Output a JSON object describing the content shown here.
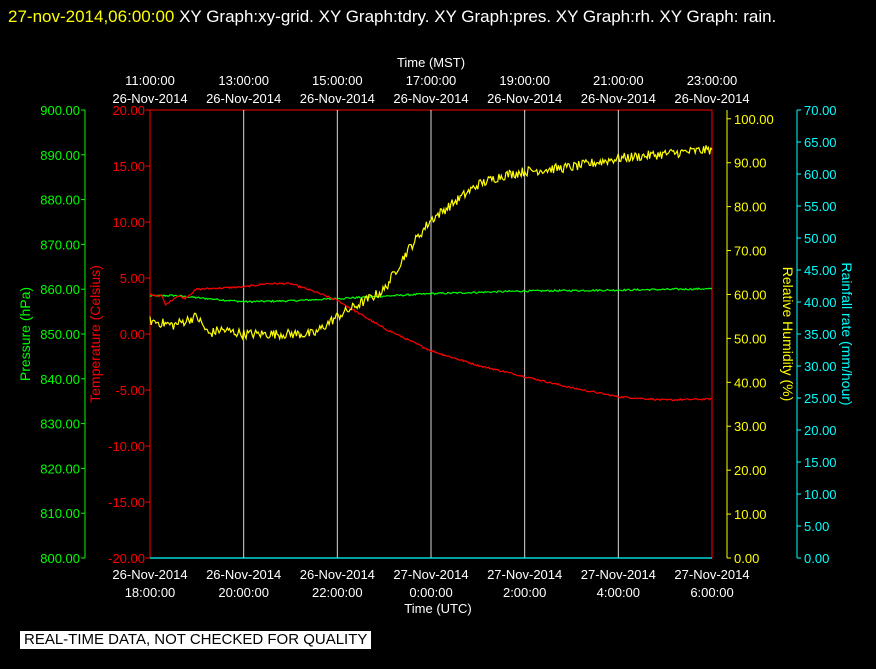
{
  "header": {
    "timestamp": "27-nov-2014,06:00:00",
    "graphs": "XY Graph:xy-grid.  XY Graph:tdry.  XY Graph:pres.  XY Graph:rh.  XY Graph: rain."
  },
  "footer_note": "REAL-TIME DATA, NOT CHECKED FOR QUALITY",
  "colors": {
    "pressure": "#00ff00",
    "temperature": "#ff0000",
    "humidity": "#ffff00",
    "rain": "#00ffff",
    "grid": "#ffffff",
    "background": "#000000"
  },
  "chart_data": {
    "type": "line",
    "grid": true,
    "x_top": {
      "label": "Time (MST)",
      "ticks": [
        {
          "time": "11:00:00",
          "date": "26-Nov-2014"
        },
        {
          "time": "13:00:00",
          "date": "26-Nov-2014"
        },
        {
          "time": "15:00:00",
          "date": "26-Nov-2014"
        },
        {
          "time": "17:00:00",
          "date": "26-Nov-2014"
        },
        {
          "time": "19:00:00",
          "date": "26-Nov-2014"
        },
        {
          "time": "21:00:00",
          "date": "26-Nov-2014"
        },
        {
          "time": "23:00:00",
          "date": "26-Nov-2014"
        }
      ]
    },
    "x_bottom": {
      "label": "Time (UTC)",
      "range": [
        "2014-11-26 18:00:00",
        "2014-11-27 06:00:00"
      ],
      "ticks": [
        {
          "date": "26-Nov-2014",
          "time": "18:00:00"
        },
        {
          "date": "26-Nov-2014",
          "time": "20:00:00"
        },
        {
          "date": "26-Nov-2014",
          "time": "22:00:00"
        },
        {
          "date": "27-Nov-2014",
          "time": "0:00:00"
        },
        {
          "date": "27-Nov-2014",
          "time": "2:00:00"
        },
        {
          "date": "27-Nov-2014",
          "time": "4:00:00"
        },
        {
          "date": "27-Nov-2014",
          "time": "6:00:00"
        }
      ]
    },
    "axes": [
      {
        "id": "pressure",
        "label": "Pressure (hPa)",
        "range": [
          800,
          900
        ],
        "ticks": [
          "800.00",
          "810.00",
          "820.00",
          "830.00",
          "840.00",
          "850.00",
          "860.00",
          "870.00",
          "880.00",
          "890.00",
          "900.00"
        ]
      },
      {
        "id": "temperature",
        "label": "Temperature (Celsius)",
        "range": [
          -20,
          20
        ],
        "ticks": [
          "-20.00",
          "-15.00",
          "-10.00",
          "-5.00",
          "0.00",
          "5.00",
          "10.00",
          "15.00",
          "20.00"
        ]
      },
      {
        "id": "humidity",
        "label": "Relative Humidity (%)",
        "range": [
          0,
          102
        ],
        "ticks": [
          "0.00",
          "10.00",
          "20.00",
          "30.00",
          "40.00",
          "50.00",
          "60.00",
          "70.00",
          "80.00",
          "90.00",
          "100.00"
        ]
      },
      {
        "id": "rain",
        "label": "Rainfall rate (mm/hour)",
        "range": [
          0,
          70
        ],
        "ticks": [
          "0.00",
          "5.00",
          "10.00",
          "15.00",
          "20.00",
          "25.00",
          "30.00",
          "35.00",
          "40.00",
          "45.00",
          "50.00",
          "55.00",
          "60.00",
          "65.00",
          "70.00"
        ]
      }
    ],
    "series": [
      {
        "axis": "pressure",
        "noise": 0.2,
        "x": [
          "2014-11-26 18:00",
          "2014-11-26 18:30",
          "2014-11-26 19:00",
          "2014-11-26 20:00",
          "2014-11-26 21:00",
          "2014-11-26 22:00",
          "2014-11-27 00:00",
          "2014-11-27 02:00",
          "2014-11-27 04:00",
          "2014-11-27 06:00"
        ],
        "y": [
          858.5,
          858.6,
          858.1,
          857.2,
          857.4,
          857.9,
          859.0,
          859.6,
          859.8,
          860.1
        ]
      },
      {
        "axis": "temperature",
        "noise": 0.08,
        "x": [
          "2014-11-26 18:00",
          "2014-11-26 18:15",
          "2014-11-26 18:20",
          "2014-11-26 18:35",
          "2014-11-26 18:45",
          "2014-11-26 19:00",
          "2014-11-26 20:00",
          "2014-11-26 20:30",
          "2014-11-26 21:00",
          "2014-11-26 21:30",
          "2014-11-26 22:00",
          "2014-11-26 23:00",
          "2014-11-27 00:00",
          "2014-11-27 01:00",
          "2014-11-27 02:00",
          "2014-11-27 03:00",
          "2014-11-27 04:00",
          "2014-11-27 05:00",
          "2014-11-27 06:00"
        ],
        "y": [
          3.5,
          3.4,
          2.6,
          3.4,
          3.2,
          4.0,
          4.2,
          4.5,
          4.5,
          3.8,
          3.0,
          0.5,
          -1.5,
          -2.8,
          -3.8,
          -4.8,
          -5.6,
          -5.9,
          -5.8
        ]
      },
      {
        "axis": "humidity",
        "noise": 1.1,
        "x": [
          "2014-11-26 18:00",
          "2014-11-26 18:30",
          "2014-11-26 19:00",
          "2014-11-26 19:15",
          "2014-11-26 19:30",
          "2014-11-26 20:00",
          "2014-11-26 21:00",
          "2014-11-26 21:30",
          "2014-11-26 22:00",
          "2014-11-26 22:30",
          "2014-11-26 23:00",
          "2014-11-26 23:30",
          "2014-11-27 00:00",
          "2014-11-27 00:30",
          "2014-11-27 01:00",
          "2014-11-27 01:30",
          "2014-11-27 02:00",
          "2014-11-27 03:00",
          "2014-11-27 04:00",
          "2014-11-27 05:00",
          "2014-11-27 06:00"
        ],
        "y": [
          54,
          53,
          55,
          51,
          52,
          51,
          51,
          51,
          55,
          58,
          61,
          70,
          77,
          81,
          85,
          87,
          88,
          89,
          91,
          92,
          93
        ]
      },
      {
        "axis": "rain",
        "x": [
          "2014-11-26 18:00",
          "2014-11-27 06:00"
        ],
        "y": [
          0,
          0
        ]
      }
    ]
  }
}
